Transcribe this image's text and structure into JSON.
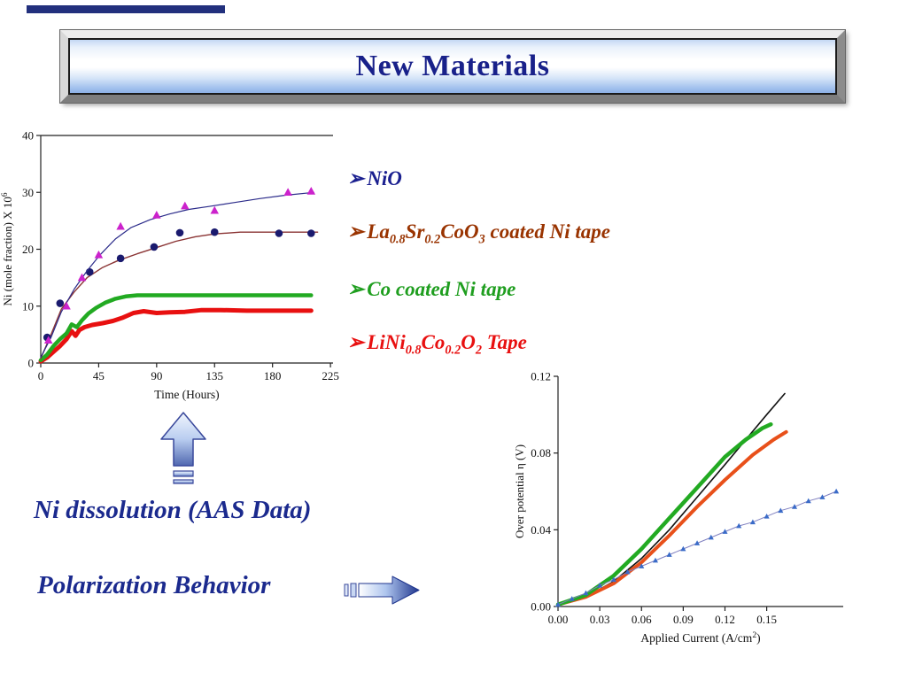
{
  "slide": {
    "title": "New Materials",
    "labels": {
      "ni_dissolution": "Ni dissolution (AAS Data)",
      "polarization": "Polarization Behavior"
    },
    "colors": {
      "title_text": "#19218a",
      "label_text": "#1b2a8e",
      "top_bar": "#22307d",
      "arrow_light": "#f0f5fd",
      "arrow_dark": "#20368e"
    }
  },
  "bullets": [
    {
      "marker": "➢",
      "color": "#1a1f8f",
      "segments": [
        {
          "t": "NiO"
        }
      ]
    },
    {
      "marker": "➢",
      "color": "#993300",
      "segments": [
        {
          "t": "La"
        },
        {
          "sub": "0.8"
        },
        {
          "t": "Sr"
        },
        {
          "sub": "0.2"
        },
        {
          "t": "CoO"
        },
        {
          "sub": "3"
        },
        {
          "t": " coated Ni tape"
        }
      ]
    },
    {
      "marker": "➢",
      "color": "#1f9e1f",
      "segments": [
        {
          "t": "Co coated Ni tape"
        }
      ]
    },
    {
      "marker": "➢",
      "color": "#e81010",
      "segments": [
        {
          "t": "LiNi"
        },
        {
          "sub": "0.8"
        },
        {
          "t": "Co"
        },
        {
          "sub": "0.2"
        },
        {
          "t": "O"
        },
        {
          "sub": "2"
        },
        {
          "t": " Tape"
        }
      ]
    }
  ],
  "chart_data": [
    {
      "id": "ni-dissolution",
      "type": "line",
      "title": "",
      "xlabel_segments": [
        {
          "t": "Time (Hours)"
        }
      ],
      "ylabel_segments": [
        {
          "t": "Ni (mole fraction) X 10"
        },
        {
          "sup": "6"
        }
      ],
      "xlim": [
        0,
        227
      ],
      "ylim": [
        0,
        40
      ],
      "xticks": [
        0,
        45,
        90,
        135,
        180,
        225
      ],
      "xtick_labels": [
        "0",
        "45",
        "90",
        "135",
        "180",
        "225"
      ],
      "yticks": [
        0,
        10,
        20,
        30,
        40
      ],
      "ytick_labels": [
        "0",
        "10",
        "20",
        "30",
        "40"
      ],
      "grid": false,
      "legend": "none",
      "frame_sides": [
        "left",
        "bottom",
        "top"
      ],
      "plot": {
        "ml": 46,
        "mr": 24,
        "mt": 13,
        "mb": 65
      },
      "series": [
        {
          "name": "LiNi0.8Co0.2O2 Tape",
          "color": "#e81010",
          "width": 5,
          "x": [
            0,
            5,
            10,
            15,
            20,
            24,
            27,
            30,
            34,
            40,
            48,
            56,
            64,
            72,
            80,
            90,
            100,
            112,
            125,
            140,
            160,
            185,
            210
          ],
          "y": [
            0.3,
            1.0,
            2.0,
            3.0,
            4.2,
            5.6,
            4.8,
            5.8,
            6.3,
            6.7,
            7.0,
            7.4,
            8.0,
            8.8,
            9.1,
            8.8,
            8.9,
            9.0,
            9.3,
            9.3,
            9.2,
            9.2,
            9.2
          ]
        },
        {
          "name": "Co coated Ni tape",
          "color": "#22aa22",
          "width": 4.5,
          "x": [
            0,
            5,
            10,
            15,
            20,
            24,
            28,
            32,
            37,
            43,
            50,
            58,
            66,
            75,
            85,
            100,
            120,
            150,
            180,
            210
          ],
          "y": [
            0.5,
            1.5,
            3.0,
            4.2,
            5.2,
            6.8,
            6.3,
            7.5,
            8.7,
            9.7,
            10.6,
            11.3,
            11.7,
            11.9,
            11.9,
            11.9,
            11.9,
            11.9,
            11.9,
            11.9
          ]
        },
        {
          "name": "La0.8Sr0.2CoO3 coated Ni tape",
          "color": "#8a3333",
          "width": 1.4,
          "x": [
            0,
            8,
            16,
            26,
            36,
            48,
            60,
            75,
            90,
            105,
            120,
            135,
            155,
            180,
            205,
            215
          ],
          "y": [
            0.8,
            5.0,
            9.5,
            12.5,
            15.0,
            16.8,
            18.0,
            19.2,
            20.3,
            21.4,
            22.2,
            22.7,
            23.0,
            23.0,
            23.0,
            23.0
          ],
          "marker": {
            "shape": "circle",
            "color": "#1a1a6e",
            "size": 4.3
          },
          "marker_x": [
            5,
            15,
            38,
            62,
            88,
            108,
            135,
            185,
            210
          ],
          "marker_y": [
            4.5,
            10.5,
            16.0,
            18.4,
            20.4,
            22.9,
            23.0,
            22.8,
            22.8
          ]
        },
        {
          "name": "NiO",
          "color": "#2b2b8a",
          "width": 1.2,
          "x": [
            0,
            8,
            16,
            26,
            36,
            46,
            58,
            70,
            85,
            100,
            115,
            130,
            150,
            170,
            190,
            212
          ],
          "y": [
            1.0,
            4.5,
            9.0,
            13.0,
            16.2,
            19.0,
            21.8,
            23.8,
            25.2,
            26.2,
            27.0,
            27.5,
            28.2,
            28.9,
            29.5,
            30.0
          ],
          "marker": {
            "shape": "triangle",
            "color": "#cc22cc",
            "size": 5
          },
          "marker_x": [
            6,
            20,
            32,
            45,
            62,
            90,
            112,
            135,
            192,
            210
          ],
          "marker_y": [
            4.0,
            10.0,
            15.0,
            19.0,
            24.0,
            26.0,
            27.6,
            26.8,
            30.0,
            30.2
          ]
        }
      ]
    },
    {
      "id": "polarization",
      "type": "line",
      "title": "",
      "xlabel_segments": [
        {
          "t": "Applied Current (A/cm"
        },
        {
          "sup": "2"
        },
        {
          "t": ")"
        }
      ],
      "ylabel_segments": [
        {
          "t": "Over potential η (V)"
        }
      ],
      "xlim": [
        0,
        0.205
      ],
      "ylim": [
        0,
        0.12
      ],
      "xticks": [
        0,
        0.03,
        0.06,
        0.09,
        0.12,
        0.15
      ],
      "xtick_labels": [
        "0.00",
        "0.03",
        "0.06",
        "0.09",
        "0.12",
        "0.15"
      ],
      "yticks": [
        0,
        0.04,
        0.08,
        0.12
      ],
      "ytick_labels": [
        "0.00",
        "0.04",
        "0.08",
        "0.12"
      ],
      "grid": false,
      "legend": "none",
      "frame_sides": [
        "left",
        "bottom"
      ],
      "plot": {
        "ml": 52,
        "mr": 26,
        "mt": 13,
        "mb": 47
      },
      "series": [
        {
          "name": "series-black",
          "color": "#111111",
          "width": 1.6,
          "x": [
            0,
            0.02,
            0.04,
            0.06,
            0.08,
            0.1,
            0.12,
            0.135,
            0.15,
            0.163
          ],
          "y": [
            0.001,
            0.005,
            0.013,
            0.025,
            0.04,
            0.057,
            0.074,
            0.087,
            0.1,
            0.111
          ]
        },
        {
          "name": "series-orange",
          "color": "#e8501a",
          "width": 4,
          "x": [
            0,
            0.02,
            0.04,
            0.06,
            0.08,
            0.1,
            0.12,
            0.14,
            0.155,
            0.164
          ],
          "y": [
            0.001,
            0.005,
            0.012,
            0.023,
            0.037,
            0.052,
            0.066,
            0.079,
            0.087,
            0.091
          ]
        },
        {
          "name": "series-green",
          "color": "#22aa22",
          "width": 4.5,
          "x": [
            0,
            0.02,
            0.04,
            0.06,
            0.08,
            0.1,
            0.12,
            0.135,
            0.147,
            0.153
          ],
          "y": [
            0.001,
            0.006,
            0.016,
            0.03,
            0.046,
            0.062,
            0.078,
            0.087,
            0.093,
            0.095
          ]
        },
        {
          "name": "series-blue-triangles",
          "color": "#8080c0",
          "width": 1,
          "x": [
            0,
            0.01,
            0.02,
            0.03,
            0.04,
            0.05,
            0.06,
            0.07,
            0.08,
            0.09,
            0.1,
            0.11,
            0.12,
            0.13,
            0.14,
            0.15,
            0.16,
            0.17,
            0.18,
            0.19,
            0.2
          ],
          "y": [
            0.001,
            0.004,
            0.007,
            0.011,
            0.014,
            0.018,
            0.021,
            0.024,
            0.027,
            0.03,
            0.033,
            0.036,
            0.039,
            0.042,
            0.044,
            0.047,
            0.05,
            0.052,
            0.055,
            0.057,
            0.06
          ],
          "marker": {
            "shape": "triangle",
            "color": "#3a6bc8",
            "size": 3.2
          }
        }
      ]
    }
  ]
}
